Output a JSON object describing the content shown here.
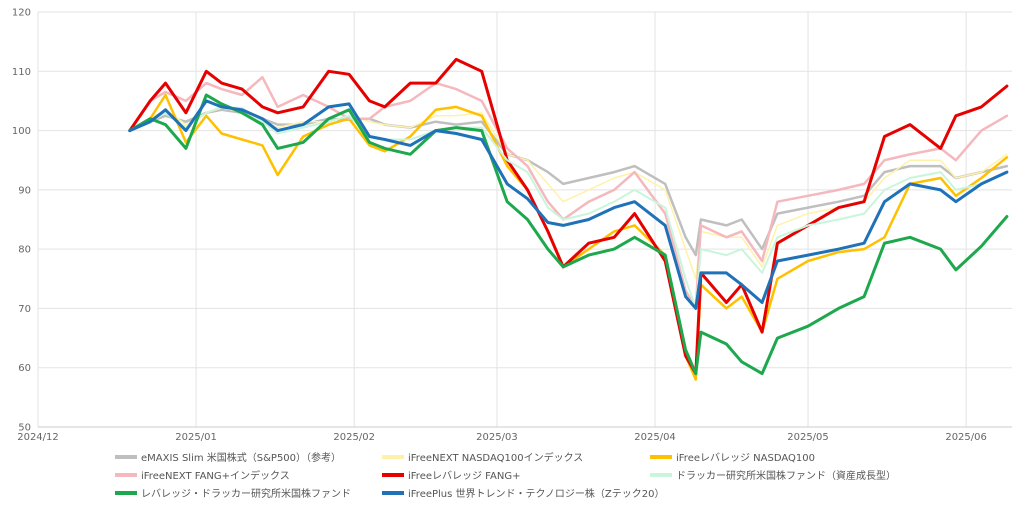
{
  "chart_data": {
    "type": "line",
    "title": "",
    "xlabel": "",
    "ylabel": "",
    "ylim": [
      50,
      120
    ],
    "y_ticks": [
      50,
      60,
      70,
      80,
      90,
      100,
      110,
      120
    ],
    "x_range": [
      "2024-12-01",
      "2025-06-10"
    ],
    "x_ticks": [
      {
        "date": "2024-12-01",
        "label": "2024/12"
      },
      {
        "date": "2025-01-01",
        "label": "2025/01"
      },
      {
        "date": "2025-02-01",
        "label": "2025/02"
      },
      {
        "date": "2025-03-01",
        "label": "2025/03"
      },
      {
        "date": "2025-04-01",
        "label": "2025/04"
      },
      {
        "date": "2025-05-01",
        "label": "2025/05"
      },
      {
        "date": "2025-06-01",
        "label": "2025/06"
      }
    ],
    "grid": true,
    "legend_position": "bottom",
    "x_dates": [
      "2024-12-19",
      "2024-12-23",
      "2024-12-26",
      "2024-12-30",
      "2025-01-03",
      "2025-01-06",
      "2025-01-10",
      "2025-01-14",
      "2025-01-17",
      "2025-01-22",
      "2025-01-27",
      "2025-01-31",
      "2025-02-04",
      "2025-02-07",
      "2025-02-12",
      "2025-02-17",
      "2025-02-21",
      "2025-02-26",
      "2025-03-03",
      "2025-03-07",
      "2025-03-11",
      "2025-03-14",
      "2025-03-19",
      "2025-03-24",
      "2025-03-28",
      "2025-04-03",
      "2025-04-07",
      "2025-04-09",
      "2025-04-10",
      "2025-04-15",
      "2025-04-18",
      "2025-04-22",
      "2025-04-25",
      "2025-05-01",
      "2025-05-07",
      "2025-05-12",
      "2025-05-16",
      "2025-05-21",
      "2025-05-27",
      "2025-05-30",
      "2025-06-04",
      "2025-06-09"
    ],
    "series": [
      {
        "name": "eMAXIS Slim 米国株式（S&P500）（参考）",
        "color": "#bfbfbf",
        "width": 2.5,
        "values": [
          100,
          101.5,
          102.5,
          101.5,
          103,
          103.5,
          103,
          102,
          101,
          101,
          102,
          101.8,
          102,
          101,
          100.5,
          101.5,
          101,
          101.5,
          96,
          95,
          93,
          91,
          92,
          93,
          94,
          91,
          82,
          79,
          85,
          84,
          85,
          80,
          86,
          87,
          88,
          89,
          93,
          94,
          94,
          92,
          93,
          94
        ]
      },
      {
        "name": "iFreeNEXT NASDAQ100インデックス",
        "color": "#fff2a8",
        "width": 1.5,
        "values": [
          100,
          102,
          103.5,
          101,
          103,
          103.8,
          103.2,
          101.5,
          100.5,
          101.5,
          101.5,
          102.5,
          101.5,
          101,
          100.5,
          102.5,
          102.5,
          103,
          96,
          95,
          91,
          88,
          90,
          92,
          93,
          90,
          80,
          75,
          83,
          82,
          82,
          77,
          84,
          86,
          87,
          88,
          92,
          95,
          95,
          92,
          93,
          96
        ]
      },
      {
        "name": "iFreeレバレッジ NASDAQ100",
        "color": "#ffc000",
        "width": 2.5,
        "values": [
          100,
          102,
          106,
          98,
          102.5,
          99.5,
          98.5,
          97.5,
          92.5,
          99,
          101,
          102,
          97.5,
          96.5,
          99,
          103.5,
          104,
          102.5,
          94,
          90,
          83,
          77,
          80,
          83,
          84,
          79,
          62,
          58,
          74,
          70,
          72,
          66,
          75,
          78,
          79.5,
          80,
          82,
          91,
          92,
          89,
          92,
          95.5
        ]
      },
      {
        "name": "iFreeNEXT FANG+インデックス",
        "color": "#f4b8bd",
        "width": 2.5,
        "values": [
          100,
          105,
          106.5,
          105,
          108,
          107,
          106,
          109,
          104,
          106,
          104,
          102,
          102,
          104,
          105,
          108,
          107,
          105,
          97,
          94,
          88,
          85,
          88,
          90,
          93,
          86,
          73,
          70,
          84,
          82,
          83,
          78,
          88,
          89,
          90,
          91,
          95,
          96,
          97,
          95,
          100,
          102.5
        ]
      },
      {
        "name": "iFreeレバレッジ FANG+",
        "color": "#e60000",
        "width": 3,
        "values": [
          100,
          105,
          108,
          103,
          110,
          108,
          107,
          104,
          103,
          104,
          110,
          109.5,
          105,
          104,
          108,
          108,
          112,
          110,
          95,
          90,
          83,
          77,
          81,
          82,
          86,
          78,
          62,
          59,
          76,
          71,
          74,
          66,
          81,
          84,
          87,
          88,
          99,
          101,
          97,
          102.5,
          104,
          107.5
        ]
      },
      {
        "name": "ドラッカー研究所米国株ファンド（資産成長型）",
        "color": "#c9f5dc",
        "width": 2,
        "values": [
          100,
          101.5,
          103,
          100.5,
          103,
          104,
          103.8,
          101.5,
          99.5,
          100.5,
          101.5,
          102.5,
          99,
          98.5,
          98.5,
          100,
          100.5,
          100.5,
          95,
          93,
          87,
          85,
          86,
          88,
          90,
          87,
          75,
          70,
          80,
          79,
          80,
          76,
          82,
          84,
          85,
          86,
          90,
          92,
          93,
          90,
          91,
          93
        ]
      },
      {
        "name": "レバレッジ・ドラッカー研究所米国株ファンド",
        "color": "#1ea84d",
        "width": 3,
        "values": [
          100,
          102,
          101,
          97,
          106,
          104.5,
          103,
          101,
          97,
          98,
          102,
          103.5,
          98,
          97,
          96,
          100,
          100.5,
          100,
          88,
          85,
          80,
          77,
          79,
          80,
          82,
          79,
          63,
          59,
          66,
          64,
          61,
          59,
          65,
          67,
          70,
          72,
          81,
          82,
          80,
          76.5,
          80.5,
          85.5
        ]
      },
      {
        "name": "iFreePlus 世界トレンド・テクノロジー株（Zテック20）",
        "color": "#1f72b8",
        "width": 3,
        "values": [
          100,
          101.5,
          103.5,
          100,
          105,
          104,
          103.5,
          102,
          100,
          101,
          104,
          104.5,
          99,
          98.5,
          97.5,
          100,
          99.5,
          98.5,
          91,
          88.5,
          84.5,
          84,
          85,
          87,
          88,
          84,
          72,
          70,
          76,
          76,
          74,
          71,
          78,
          79,
          80,
          81,
          88,
          91,
          90,
          88,
          91,
          93
        ]
      }
    ]
  }
}
